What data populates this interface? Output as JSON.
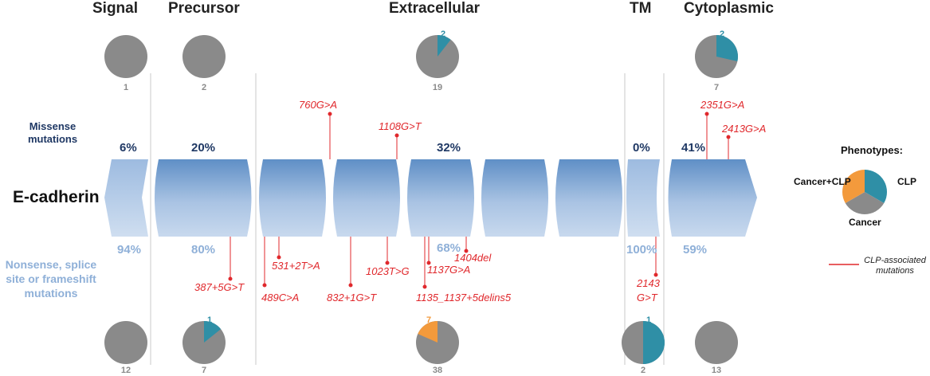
{
  "domains": [
    {
      "title": "Signal",
      "missense_pct": "6%",
      "nonsense_pct": "94%",
      "missense_count": "1",
      "nonsense_count": "12"
    },
    {
      "title": "Precursor",
      "missense_pct": "20%",
      "nonsense_pct": "80%",
      "missense_count": "2",
      "nonsense_count": "7"
    },
    {
      "title": "Extracellular",
      "missense_pct": "32%",
      "nonsense_pct": "68%",
      "missense_count": "19",
      "nonsense_count": "38"
    },
    {
      "title": "TM",
      "missense_pct": "0%",
      "nonsense_pct": "100%",
      "missense_count": "",
      "nonsense_count": "2"
    },
    {
      "title": "Cytoplasmic",
      "missense_pct": "41%",
      "nonsense_pct": "59%",
      "missense_count": "7",
      "nonsense_count": "13"
    }
  ],
  "rows": {
    "missense_label": "Missense mutations",
    "nonsense_label": "Nonsense, splice site or frameshift mutations",
    "protein_label": "E-cadherin"
  },
  "missense_pies": [
    {
      "name": "signal",
      "clp": 0,
      "cancer_clp": 0,
      "total": 1,
      "clp_label": "",
      "cc_label": ""
    },
    {
      "name": "precursor",
      "clp": 0,
      "cancer_clp": 0,
      "total": 2,
      "clp_label": "",
      "cc_label": ""
    },
    {
      "name": "extracellular",
      "clp": 2,
      "cancer_clp": 0,
      "total": 19,
      "clp_label": "2",
      "cc_label": ""
    },
    {
      "name": "cytoplasmic",
      "clp": 2,
      "cancer_clp": 0,
      "total": 7,
      "clp_label": "2",
      "cc_label": ""
    }
  ],
  "nonsense_pies": [
    {
      "name": "signal",
      "clp": 0,
      "cancer_clp": 0,
      "total": 12,
      "clp_label": "",
      "cc_label": ""
    },
    {
      "name": "precursor",
      "clp": 1,
      "cancer_clp": 0,
      "total": 7,
      "clp_label": "1",
      "cc_label": ""
    },
    {
      "name": "extracellular",
      "clp": 0,
      "cancer_clp": 7,
      "total": 38,
      "clp_label": "",
      "cc_label": "7"
    },
    {
      "name": "tm",
      "clp": 1,
      "cancer_clp": 0,
      "total": 2,
      "clp_label": "1",
      "cc_label": ""
    },
    {
      "name": "cytoplasmic",
      "clp": 0,
      "cancer_clp": 0,
      "total": 13,
      "clp_label": "",
      "cc_label": ""
    }
  ],
  "missense_mutations": [
    "760G>A",
    "1108G>T",
    "2351G>A",
    "2413G>A"
  ],
  "nonsense_mutations": [
    "387+5G>T",
    "531+2T>A",
    "489C>A",
    "832+1G>T",
    "1023T>G",
    "1137G>A",
    "1404del",
    "1135_1137+5delins5",
    "2143",
    "G>T"
  ],
  "phenotypes": {
    "title": "Phenotypes:",
    "cancer_clp": "Cancer+CLP",
    "clp": "CLP",
    "cancer": "Cancer",
    "clp_color": "#2f8fa6",
    "cancer_color": "#8a8a8a",
    "cancer_clp_color": "#f39a3c",
    "legend_label": "CLP-associated mutations"
  },
  "colors": {
    "mutation_red": "#e0282c",
    "missense_blue": "#1f3864",
    "nonsense_blue": "#8fb0d8",
    "pie_grey": "#8a8a8a"
  }
}
